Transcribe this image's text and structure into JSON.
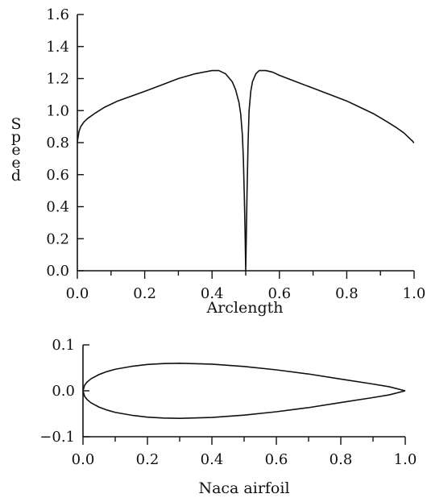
{
  "chart_data": [
    {
      "type": "line",
      "title": "",
      "xlabel": "Arclength",
      "ylabel": "Speed",
      "xlim": [
        0.0,
        1.0
      ],
      "ylim": [
        0.0,
        1.6
      ],
      "x_ticks": [
        "0.0",
        "0.2",
        "0.4",
        "0.6",
        "0.8",
        "1.0"
      ],
      "y_ticks": [
        "0.0",
        "0.2",
        "0.4",
        "0.6",
        "0.8",
        "1.0",
        "1.2",
        "1.4",
        "1.6"
      ],
      "grid": false,
      "series": [
        {
          "x": [
            0.0,
            0.001,
            0.005,
            0.01,
            0.02,
            0.03,
            0.05,
            0.08,
            0.12,
            0.16,
            0.2,
            0.25,
            0.3,
            0.35,
            0.4,
            0.42,
            0.44,
            0.46,
            0.47,
            0.48,
            0.485,
            0.49,
            0.493,
            0.496,
            0.498,
            0.5,
            0.502,
            0.504,
            0.507,
            0.51,
            0.515,
            0.52,
            0.53,
            0.54,
            0.56,
            0.58,
            0.6,
            0.65,
            0.7,
            0.75,
            0.8,
            0.84,
            0.88,
            0.92,
            0.95,
            0.97,
            0.98,
            0.99,
            0.995,
            0.999,
            1.0
          ],
          "y": [
            0.8,
            0.82,
            0.87,
            0.9,
            0.93,
            0.95,
            0.98,
            1.02,
            1.06,
            1.09,
            1.12,
            1.16,
            1.2,
            1.23,
            1.25,
            1.25,
            1.23,
            1.18,
            1.13,
            1.05,
            0.98,
            0.85,
            0.7,
            0.45,
            0.25,
            0.0,
            0.25,
            0.5,
            0.8,
            1.0,
            1.12,
            1.18,
            1.23,
            1.25,
            1.25,
            1.24,
            1.22,
            1.18,
            1.14,
            1.1,
            1.06,
            1.02,
            0.98,
            0.93,
            0.89,
            0.86,
            0.84,
            0.82,
            0.81,
            0.8,
            0.8
          ]
        }
      ]
    },
    {
      "type": "line",
      "title": "",
      "xlabel": "Naca airfoil",
      "ylabel": "",
      "xlim": [
        0.0,
        1.0
      ],
      "ylim": [
        -0.1,
        0.1
      ],
      "x_ticks": [
        "0.0",
        "0.2",
        "0.4",
        "0.6",
        "0.8",
        "1.0"
      ],
      "y_ticks": [
        "−0.1",
        "0.0",
        "0.1"
      ],
      "grid": false,
      "series": [
        {
          "x": [
            1.0,
            0.95,
            0.9,
            0.8,
            0.7,
            0.6,
            0.5,
            0.4,
            0.3,
            0.25,
            0.2,
            0.15,
            0.1,
            0.075,
            0.05,
            0.025,
            0.0125,
            0.005,
            0.0,
            0.005,
            0.0125,
            0.025,
            0.05,
            0.075,
            0.1,
            0.15,
            0.2,
            0.25,
            0.3,
            0.4,
            0.5,
            0.6,
            0.7,
            0.8,
            0.9,
            0.95,
            1.0
          ],
          "y": [
            0.0,
            0.0089,
            0.0147,
            0.0255,
            0.0366,
            0.0456,
            0.0529,
            0.058,
            0.06,
            0.0594,
            0.0574,
            0.0531,
            0.0469,
            0.042,
            0.0355,
            0.0262,
            0.0189,
            0.012,
            0.0,
            -0.012,
            -0.0189,
            -0.0262,
            -0.0355,
            -0.042,
            -0.0469,
            -0.0531,
            -0.0574,
            -0.0594,
            -0.06,
            -0.058,
            -0.0529,
            -0.0456,
            -0.0366,
            -0.0255,
            -0.0147,
            -0.0089,
            0.0
          ]
        }
      ]
    }
  ]
}
